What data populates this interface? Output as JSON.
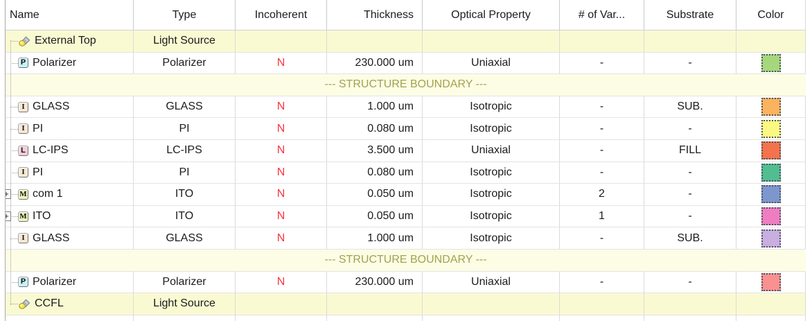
{
  "table": {
    "columns": [
      {
        "key": "name",
        "label": "Name"
      },
      {
        "key": "type",
        "label": "Type"
      },
      {
        "key": "incoherent",
        "label": "Incoherent"
      },
      {
        "key": "thickness",
        "label": "Thickness"
      },
      {
        "key": "optical",
        "label": "Optical Property"
      },
      {
        "key": "vars",
        "label": "# of Var..."
      },
      {
        "key": "substrate",
        "label": "Substrate"
      },
      {
        "key": "color",
        "label": "Color"
      }
    ],
    "boundary_label": "--- STRUCTURE BOUNDARY ---",
    "rows": [
      {
        "icon": "light",
        "icon_name": "light-source-icon",
        "name": "External Top",
        "type": "Light Source",
        "incoherent": "",
        "thickness": "",
        "optical": "",
        "vars": "",
        "substrate": "",
        "color": null,
        "highlight": true,
        "expander": false
      },
      {
        "icon": "P",
        "icon_name": "layer-icon-p",
        "name": "Polarizer",
        "type": "Polarizer",
        "incoherent": "N",
        "thickness": "230.000 um",
        "optical": "Uniaxial",
        "vars": "-",
        "substrate": "-",
        "color": "#a6d77d",
        "highlight": false,
        "expander": false
      },
      {
        "kind": "boundary"
      },
      {
        "icon": "I",
        "icon_name": "layer-icon-i",
        "name": "GLASS",
        "type": "GLASS",
        "incoherent": "N",
        "thickness": "1.000 um",
        "optical": "Isotropic",
        "vars": "-",
        "substrate": "SUB.",
        "color": "#fcb35f",
        "highlight": false,
        "expander": false
      },
      {
        "icon": "I",
        "icon_name": "layer-icon-i",
        "name": "PI",
        "type": "PI",
        "incoherent": "N",
        "thickness": "0.080 um",
        "optical": "Isotropic",
        "vars": "-",
        "substrate": "-",
        "color": "#fcf983",
        "highlight": false,
        "expander": false
      },
      {
        "icon": "L",
        "icon_name": "layer-icon-l",
        "name": "LC-IPS",
        "type": "LC-IPS",
        "incoherent": "N",
        "thickness": "3.500 um",
        "optical": "Uniaxial",
        "vars": "-",
        "substrate": "FILL",
        "color": "#f3734d",
        "highlight": false,
        "expander": false
      },
      {
        "icon": "I",
        "icon_name": "layer-icon-i",
        "name": "PI",
        "type": "PI",
        "incoherent": "N",
        "thickness": "0.080 um",
        "optical": "Isotropic",
        "vars": "-",
        "substrate": "-",
        "color": "#52bd90",
        "highlight": false,
        "expander": false
      },
      {
        "icon": "M",
        "icon_name": "layer-icon-m",
        "name": "com 1",
        "type": "ITO",
        "incoherent": "N",
        "thickness": "0.050 um",
        "optical": "Isotropic",
        "vars": "2",
        "substrate": "-",
        "color": "#7e96ce",
        "highlight": false,
        "expander": true
      },
      {
        "icon": "M",
        "icon_name": "layer-icon-m",
        "name": "ITO",
        "type": "ITO",
        "incoherent": "N",
        "thickness": "0.050 um",
        "optical": "Isotropic",
        "vars": "1",
        "substrate": "-",
        "color": "#ef7ec0",
        "highlight": false,
        "expander": true
      },
      {
        "icon": "I",
        "icon_name": "layer-icon-i",
        "name": "GLASS",
        "type": "GLASS",
        "incoherent": "N",
        "thickness": "1.000 um",
        "optical": "Isotropic",
        "vars": "-",
        "substrate": "SUB.",
        "color": "#c9aee0",
        "highlight": false,
        "expander": false
      },
      {
        "kind": "boundary"
      },
      {
        "icon": "P",
        "icon_name": "layer-icon-p",
        "name": "Polarizer",
        "type": "Polarizer",
        "incoherent": "N",
        "thickness": "230.000 um",
        "optical": "Uniaxial",
        "vars": "-",
        "substrate": "-",
        "color": "#f8918f",
        "highlight": false,
        "expander": false
      },
      {
        "icon": "light",
        "icon_name": "light-source-icon",
        "name": "CCFL",
        "type": "Light Source",
        "incoherent": "",
        "thickness": "",
        "optical": "",
        "vars": "",
        "substrate": "",
        "color": null,
        "highlight": true,
        "expander": false
      }
    ],
    "colors": {
      "highlight_row_bg": "#fafad2",
      "boundary_row_bg": "#fdfde6",
      "boundary_text": "#a2a24e",
      "incoherent_flag_text": "#fa333d",
      "grid_line": "#dadada",
      "tree_line": "#9b9b9b"
    }
  }
}
